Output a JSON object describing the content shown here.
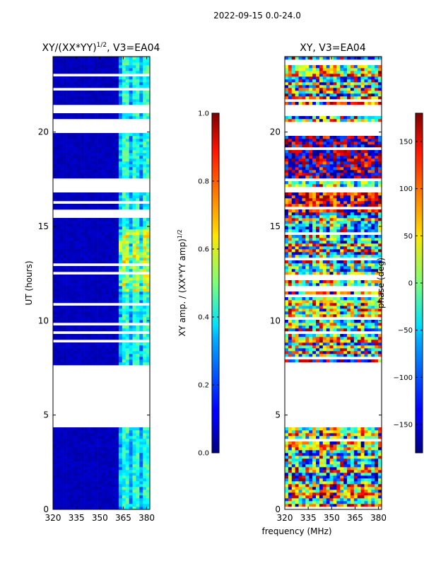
{
  "figure": {
    "suptitle": "2022-09-15 0.0-24.0"
  },
  "chart_data": [
    {
      "type": "heatmap",
      "title": "XY/(XX*YY)^{1/2}, V3=EA04",
      "title_main": "XY/(XX*YY)",
      "title_exp": "1/2",
      "title_tail": ", V3=EA04",
      "xlabel": "",
      "ylabel": "UT (hours)",
      "xlim": [
        320,
        382
      ],
      "ylim": [
        0,
        24
      ],
      "xticks": [
        320,
        335,
        350,
        365,
        380
      ],
      "yticks": [
        0,
        5,
        10,
        15,
        20
      ],
      "colorbar": {
        "label": "XY amp. / (XX*YY amp)^{1/2}",
        "label_main": "XY amp. / (XX*YY amp)",
        "label_exp": "1/2",
        "range": [
          0.0,
          1.0
        ],
        "ticks": [
          0.0,
          0.2,
          0.4,
          0.6,
          0.8,
          1.0
        ],
        "tick_labels": [
          "0.0",
          "0.2",
          "0.4",
          "0.6",
          "0.8",
          "1.0"
        ]
      },
      "colormap": "jet",
      "data_gaps_hours": [
        [
          4.4,
          7.6
        ],
        [
          16.8,
          17.5
        ],
        [
          20.0,
          20.6
        ],
        [
          15.5,
          15.7
        ],
        [
          21.0,
          21.5
        ]
      ],
      "bright_channel_band_mhz": [
        361,
        382
      ]
    },
    {
      "type": "heatmap",
      "title": "XY, V3=EA04",
      "xlabel": "frequency (MHz)",
      "ylabel": "",
      "xlim": [
        320,
        382
      ],
      "ylim": [
        0,
        24
      ],
      "xticks": [
        320,
        335,
        350,
        365,
        380
      ],
      "yticks": [
        0,
        5,
        10,
        15,
        20
      ],
      "colorbar": {
        "label": "phase (deg)",
        "range": [
          -180,
          180
        ],
        "ticks": [
          -150,
          -100,
          -50,
          0,
          50,
          100,
          150
        ],
        "tick_labels": [
          "−150",
          "−100",
          "−50",
          "0",
          "50",
          "100",
          "150"
        ]
      },
      "colormap": "jet",
      "data_gaps_hours": [
        [
          4.4,
          7.6
        ],
        [
          20.0,
          20.6
        ],
        [
          16.8,
          17.1
        ],
        [
          21.0,
          21.5
        ]
      ]
    }
  ]
}
